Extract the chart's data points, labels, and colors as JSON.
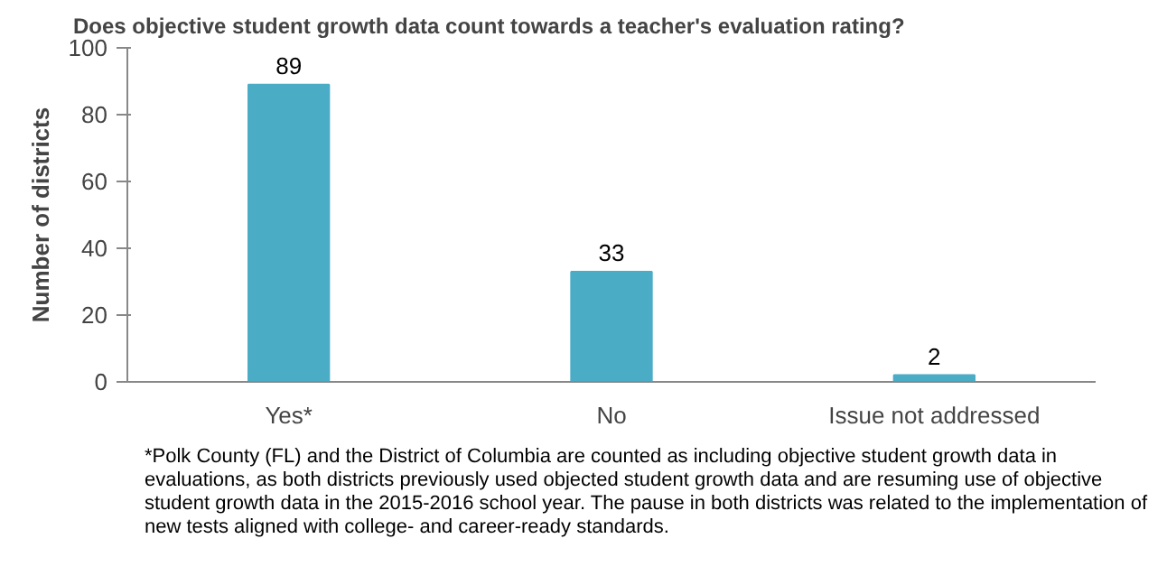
{
  "chart_data": {
    "type": "bar",
    "title": "Does objective student growth data count towards a teacher's evaluation rating?",
    "ylabel": "Number of districts",
    "categories": [
      "Yes*",
      "No",
      "Issue not addressed"
    ],
    "values": [
      89,
      33,
      2
    ],
    "color": "#4bacc6",
    "ylim": [
      0,
      100
    ],
    "yticks": [
      0,
      20,
      40,
      60,
      80,
      100
    ],
    "grid": false,
    "data_labels": true,
    "annotations": [
      "*Polk County (FL) and the District of Columbia are counted as including objective student growth data in evaluations, as both districts previously used objected student growth data and are resuming use of objective student growth data in the 2015-2016 school year. The pause in both districts was related to the implementation of new tests aligned with college- and career-ready standards."
    ]
  }
}
